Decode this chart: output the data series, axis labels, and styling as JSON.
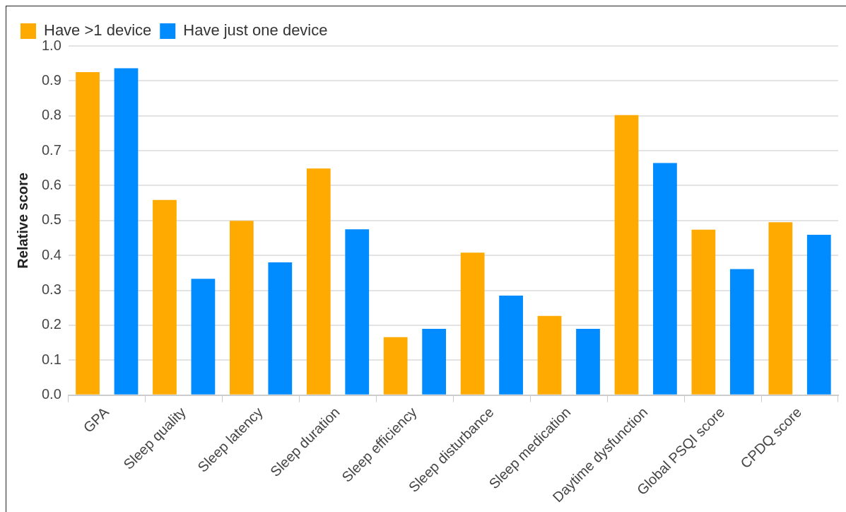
{
  "chart_data": {
    "type": "bar",
    "ylabel": "Relative score",
    "categories": [
      "GPA",
      "Sleep quality",
      "Sleep latency",
      "Sleep duration",
      "Sleep efficiency",
      "Sleep disturbance",
      "Sleep medication",
      "Daytime dysfunction",
      "Global PSQI score",
      "CPDQ score"
    ],
    "series": [
      {
        "name": "Have >1 device",
        "color": "#ffaa00",
        "values": [
          0.925,
          0.559,
          0.499,
          0.649,
          0.166,
          0.408,
          0.227,
          0.802,
          0.474,
          0.495
        ]
      },
      {
        "name": "Have just one device",
        "color": "#008cff",
        "values": [
          0.936,
          0.333,
          0.38,
          0.475,
          0.19,
          0.285,
          0.19,
          0.665,
          0.361,
          0.459
        ]
      }
    ],
    "ylim": [
      0,
      1
    ],
    "yticks": [
      {
        "value": 0,
        "label": "0.0"
      },
      {
        "value": 0.1,
        "label": "0.1"
      },
      {
        "value": 0.2,
        "label": "0.2"
      },
      {
        "value": 0.3,
        "label": "0.3"
      },
      {
        "value": 0.4,
        "label": "0.4"
      },
      {
        "value": 0.5,
        "label": "0.5"
      },
      {
        "value": 0.6,
        "label": "0.6"
      },
      {
        "value": 0.7,
        "label": "0.7"
      },
      {
        "value": 0.8,
        "label": "0.8"
      },
      {
        "value": 0.9,
        "label": "0.9"
      },
      {
        "value": 1,
        "label": "1.0"
      }
    ],
    "grid": "y",
    "legend": "top left"
  }
}
